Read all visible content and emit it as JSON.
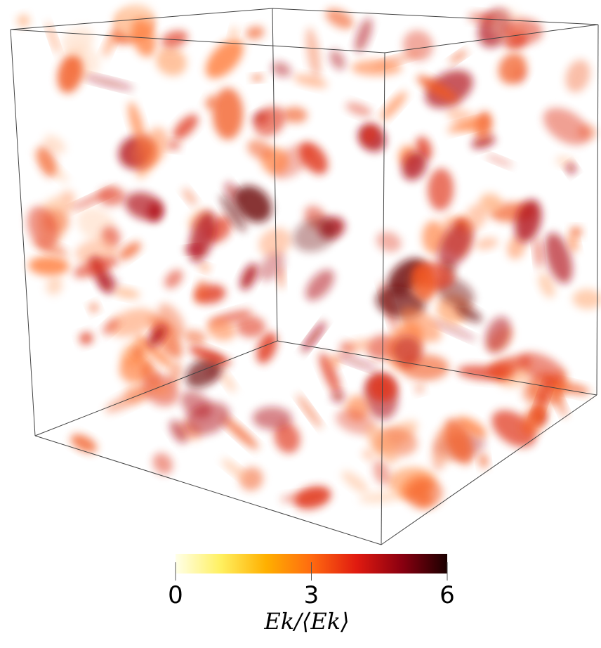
{
  "colorbar": {
    "lim": [
      0,
      6
    ],
    "ticks": [
      0,
      3,
      6
    ],
    "label": "Ek/⟨Ek⟩",
    "colors": [
      "#ffffe8",
      "#fff060",
      "#ffb000",
      "#ff6a10",
      "#e01a10",
      "#8a0010",
      "#1a0000"
    ]
  }
}
